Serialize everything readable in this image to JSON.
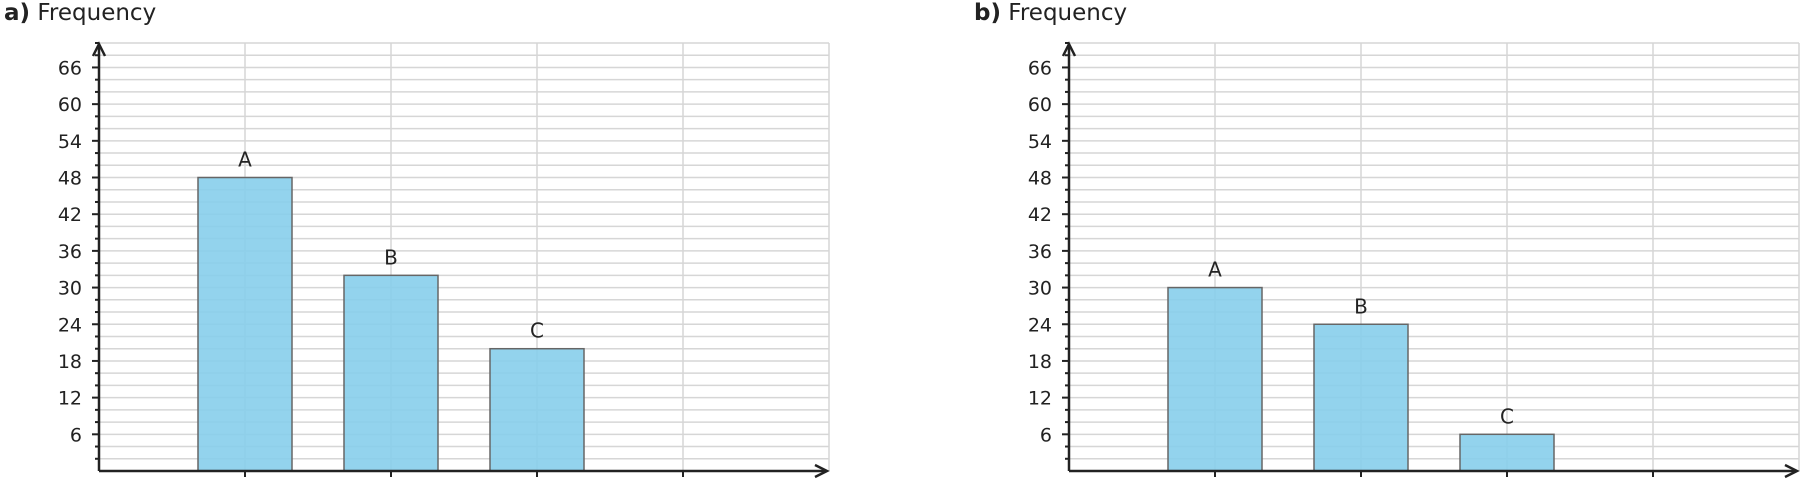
{
  "chart_data": [
    {
      "type": "bar",
      "panel_label": "a)",
      "ylabel": "Frequency",
      "categories": [
        "A",
        "B",
        "C"
      ],
      "values": [
        48,
        32,
        20
      ],
      "yticks": [
        6,
        12,
        18,
        24,
        30,
        36,
        42,
        48,
        54,
        60,
        66
      ],
      "ylim": [
        0,
        70
      ],
      "bar_color": "#87CEEB",
      "grid": true
    },
    {
      "type": "bar",
      "panel_label": "b)",
      "ylabel": "Frequency",
      "categories": [
        "A",
        "B",
        "C"
      ],
      "values": [
        30,
        24,
        6
      ],
      "yticks": [
        6,
        12,
        18,
        24,
        30,
        36,
        42,
        48,
        54,
        60,
        66
      ],
      "ylim": [
        0,
        70
      ],
      "bar_color": "#87CEEB",
      "grid": true
    }
  ]
}
